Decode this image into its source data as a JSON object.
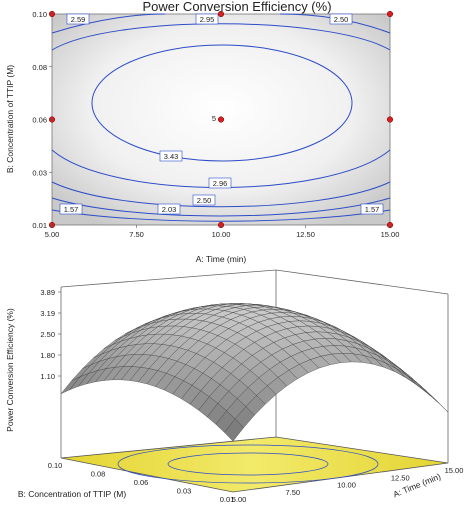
{
  "chart_data": [
    {
      "type": "contour",
      "title": "Power Conversion Efficiency (%)",
      "xlabel": "A: Time (min)",
      "ylabel": "B: Concentration of TTIP (M)",
      "x_ticks": [
        "5.00",
        "7.50",
        "10.00",
        "12.50",
        "15.00"
      ],
      "y_ticks": [
        "0.01",
        "0.03",
        "0.06",
        "0.08",
        "0.10"
      ],
      "xlim": [
        5.0,
        15.0
      ],
      "ylim": [
        0.01,
        0.1
      ],
      "contour_levels": [
        {
          "label": "1.57",
          "value": 1.57
        },
        {
          "label": "2.03",
          "value": 2.03
        },
        {
          "label": "2.50",
          "value": 2.5
        },
        {
          "label": "2.96",
          "value": 2.96
        },
        {
          "label": "3.43",
          "value": 3.43
        }
      ],
      "top_labels": [
        "2.59",
        "2.95",
        "2.50"
      ],
      "center_label": "5",
      "design_points": [
        {
          "x": 5.0,
          "y": 0.01
        },
        {
          "x": 10.0,
          "y": 0.01
        },
        {
          "x": 15.0,
          "y": 0.01
        },
        {
          "x": 5.0,
          "y": 0.055
        },
        {
          "x": 10.0,
          "y": 0.055
        },
        {
          "x": 15.0,
          "y": 0.055
        },
        {
          "x": 5.0,
          "y": 0.1
        },
        {
          "x": 10.0,
          "y": 0.1
        },
        {
          "x": 15.0,
          "y": 0.1
        }
      ]
    },
    {
      "type": "surface",
      "zlabel": "Power Conversion Efficiency (%)",
      "xlabel": "A: Time (min)",
      "ylabel": "B: Concentration of TTIP (M)",
      "z_ticks": [
        "1.10",
        "1.80",
        "2.50",
        "3.19",
        "3.89"
      ],
      "x_ticks": [
        "5.00",
        "7.50",
        "10.00",
        "12.50",
        "15.00"
      ],
      "y_ticks": [
        "0.01",
        "0.03",
        "0.06",
        "0.08",
        "0.10"
      ],
      "zlim": [
        1.1,
        3.89
      ],
      "surface_color": "#a8a8a8",
      "floor_color": "#e8dc3c"
    }
  ]
}
